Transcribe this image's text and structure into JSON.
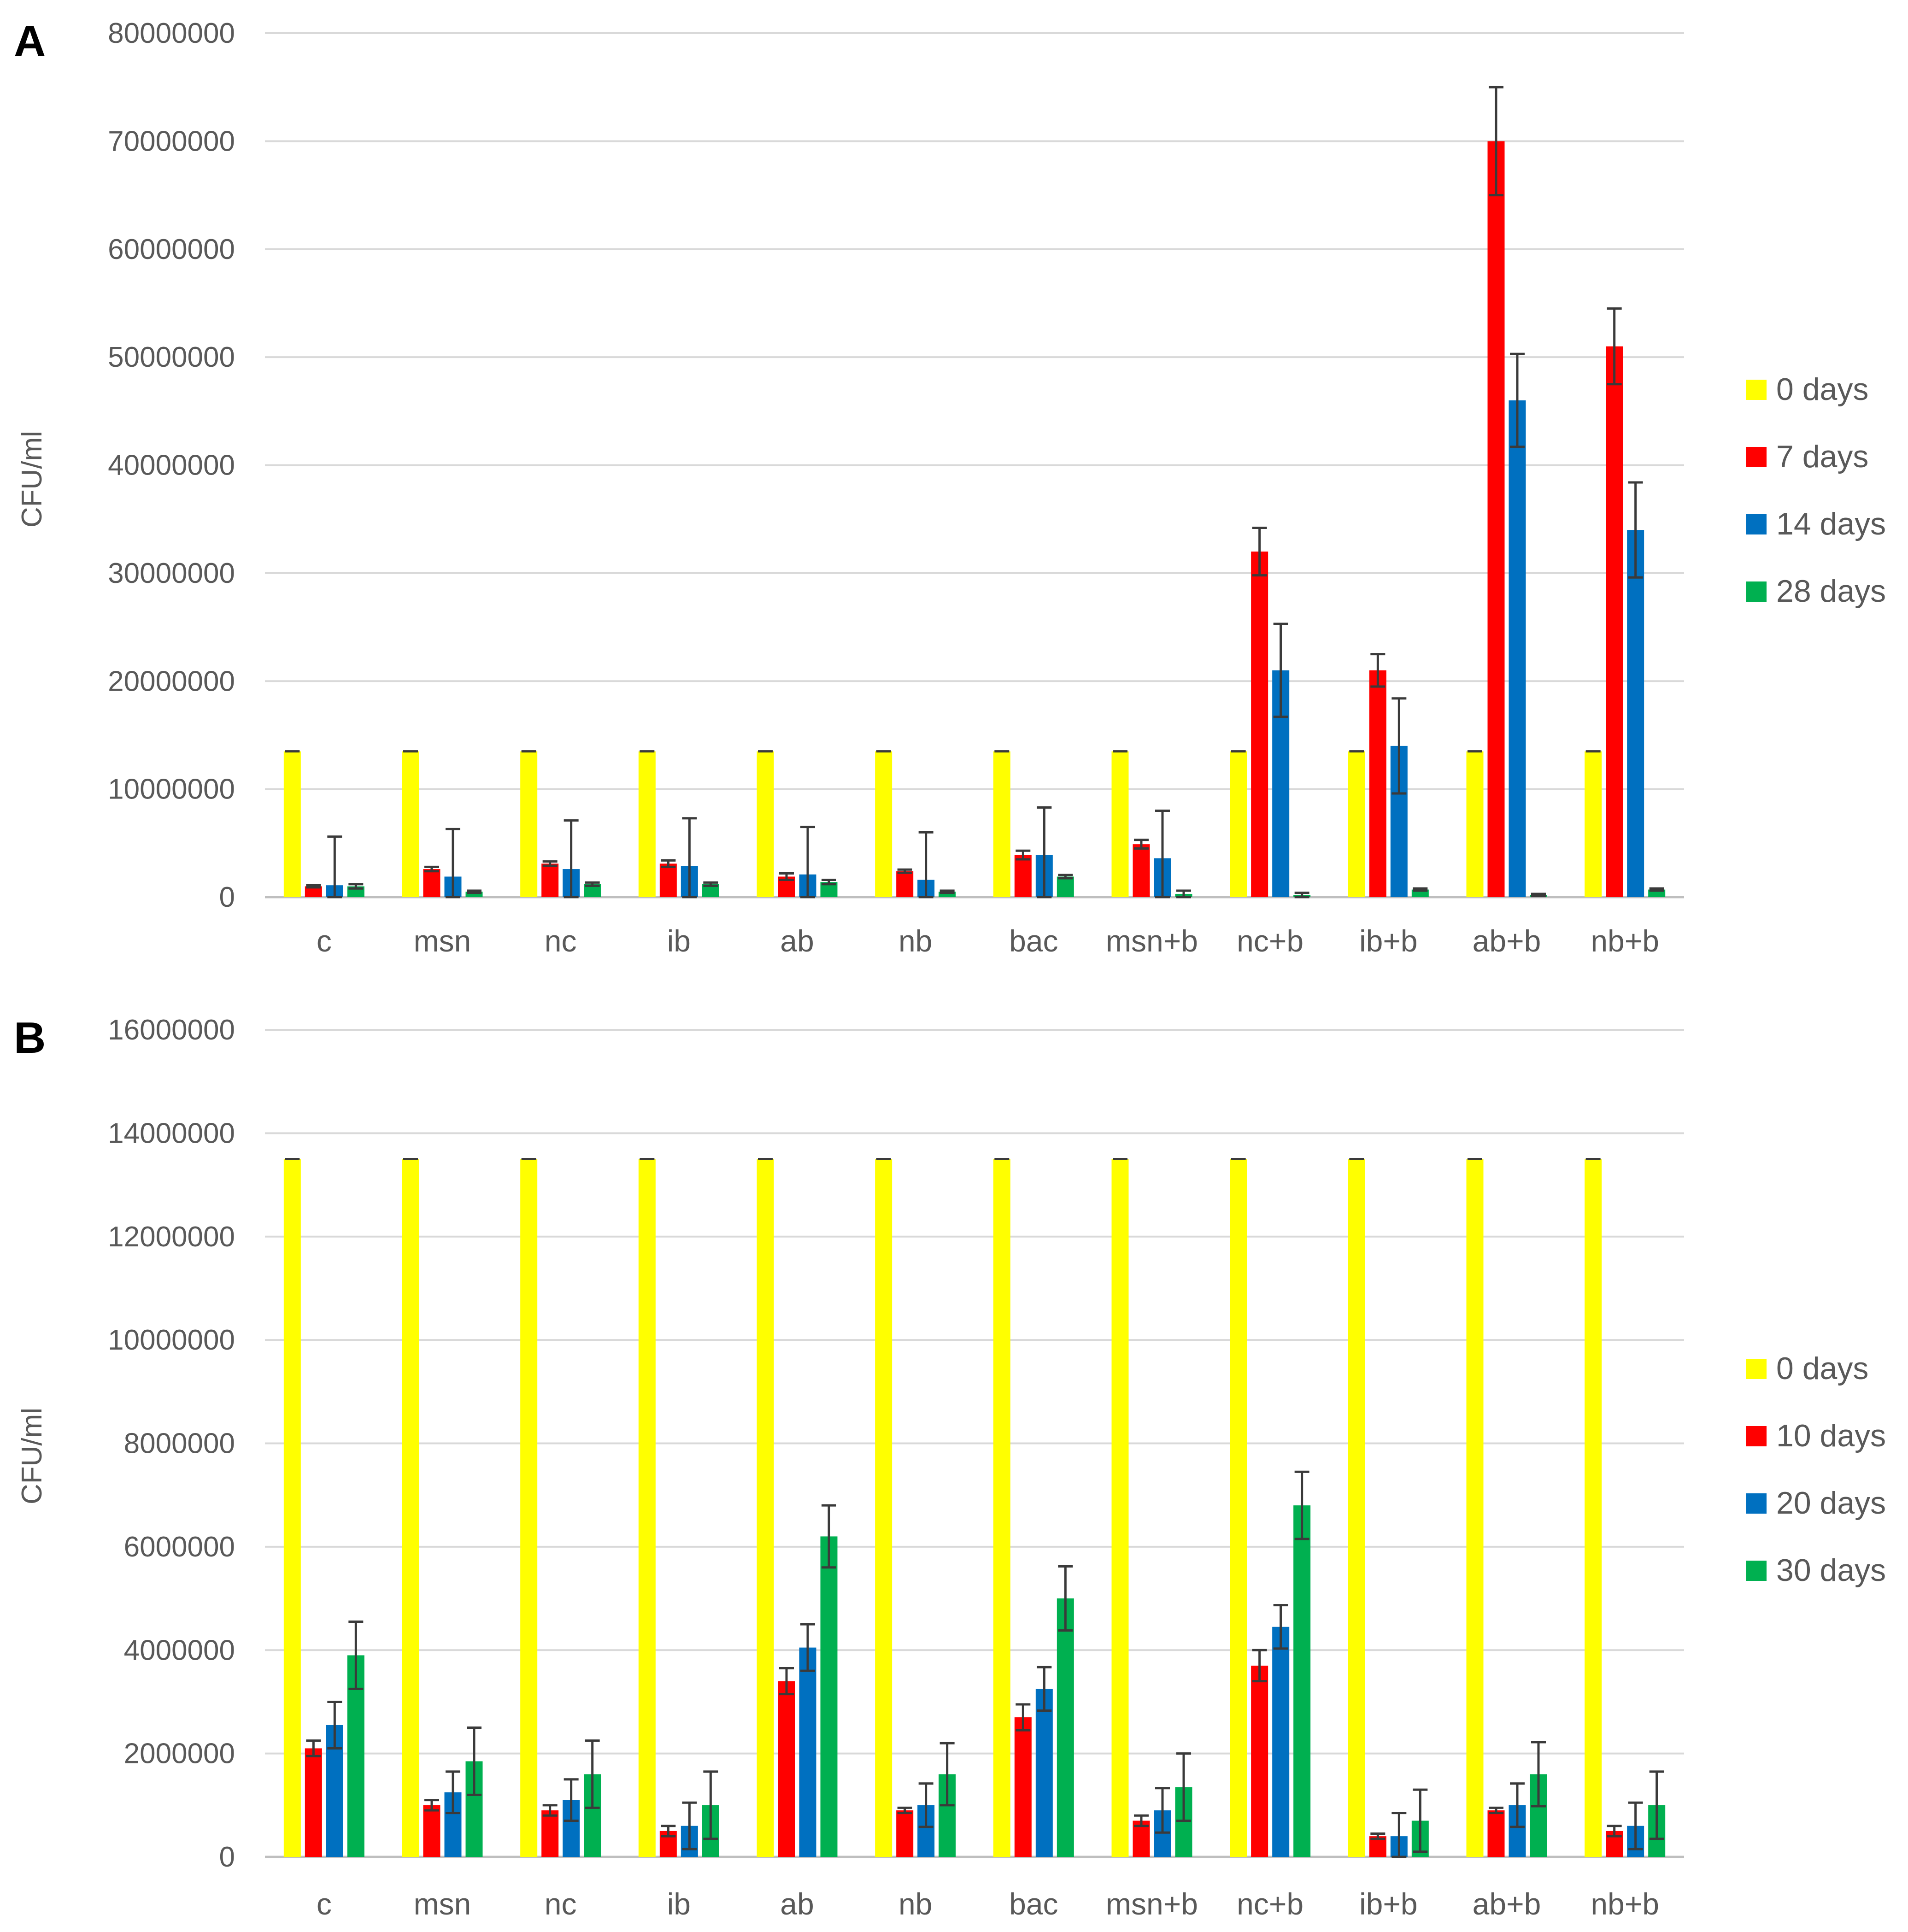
{
  "colors": {
    "yellow": "#ffff00",
    "red": "#ff0000",
    "blue": "#0070c0",
    "green": "#00b050",
    "text": "#595959",
    "grid": "#d9d9d9"
  },
  "chart_data": [
    {
      "panel": "A",
      "type": "bar",
      "ylabel": "CFU/ml",
      "ylim": [
        0,
        80000000
      ],
      "yticks": [
        "0",
        "10000000",
        "20000000",
        "30000000",
        "40000000",
        "50000000",
        "60000000",
        "70000000",
        "80000000"
      ],
      "categories": [
        "c",
        "msn",
        "nc",
        "ib",
        "ab",
        "nb",
        "bac",
        "msn+b",
        "nc+b",
        "ib+b",
        "ab+b",
        "nb+b"
      ],
      "legend_position": "right",
      "series": [
        {
          "name": "0 days",
          "color": "#ffff00",
          "values": [
            13500000,
            13500000,
            13500000,
            13500000,
            13500000,
            13500000,
            13500000,
            13500000,
            13500000,
            13500000,
            13500000,
            13500000
          ],
          "errors": [
            0,
            0,
            0,
            0,
            0,
            0,
            0,
            0,
            0,
            0,
            0,
            0
          ]
        },
        {
          "name": "7 days",
          "color": "#ff0000",
          "values": [
            1000000,
            2600000,
            3100000,
            3100000,
            1900000,
            2400000,
            3900000,
            4900000,
            32000000,
            21000000,
            70000000,
            51000000
          ],
          "errors": [
            100000,
            200000,
            200000,
            300000,
            300000,
            150000,
            400000,
            400000,
            2200000,
            1500000,
            5000000,
            3500000
          ]
        },
        {
          "name": "14 days",
          "color": "#0070c0",
          "values": [
            1100000,
            1900000,
            2600000,
            2900000,
            2100000,
            1600000,
            3900000,
            3600000,
            21000000,
            14000000,
            46000000,
            34000000
          ],
          "errors": [
            4500000,
            4400000,
            4500000,
            4400000,
            4400000,
            4400000,
            4400000,
            4400000,
            4300000,
            4400000,
            4300000,
            4400000
          ]
        },
        {
          "name": "28 days",
          "color": "#00b050",
          "values": [
            1000000,
            500000,
            1200000,
            1200000,
            1400000,
            500000,
            1900000,
            300000,
            200000,
            700000,
            200000,
            700000
          ],
          "errors": [
            200000,
            100000,
            150000,
            150000,
            200000,
            100000,
            150000,
            300000,
            200000,
            100000,
            100000,
            100000
          ]
        }
      ]
    },
    {
      "panel": "B",
      "type": "bar",
      "ylabel": "CFU/ml",
      "ylim": [
        0,
        16000000
      ],
      "yticks": [
        "0",
        "2000000",
        "4000000",
        "6000000",
        "8000000",
        "10000000",
        "12000000",
        "14000000",
        "16000000"
      ],
      "categories": [
        "c",
        "msn",
        "nc",
        "ib",
        "ab",
        "nb",
        "bac",
        "msn+b",
        "nc+b",
        "ib+b",
        "ab+b",
        "nb+b"
      ],
      "legend_position": "right",
      "series": [
        {
          "name": "0 days",
          "color": "#ffff00",
          "values": [
            13500000,
            13500000,
            13500000,
            13500000,
            13500000,
            13500000,
            13500000,
            13500000,
            13500000,
            13500000,
            13500000,
            13500000
          ],
          "errors": [
            0,
            0,
            0,
            0,
            0,
            0,
            0,
            0,
            0,
            0,
            0,
            0
          ]
        },
        {
          "name": "10 days",
          "color": "#ff0000",
          "values": [
            2100000,
            1000000,
            900000,
            500000,
            3400000,
            900000,
            2700000,
            700000,
            3700000,
            400000,
            900000,
            500000
          ],
          "errors": [
            150000,
            100000,
            100000,
            100000,
            250000,
            50000,
            250000,
            100000,
            300000,
            50000,
            50000,
            100000
          ]
        },
        {
          "name": "20 days",
          "color": "#0070c0",
          "values": [
            2550000,
            1250000,
            1100000,
            600000,
            4050000,
            1000000,
            3250000,
            900000,
            4450000,
            400000,
            1000000,
            600000
          ],
          "errors": [
            450000,
            400000,
            400000,
            450000,
            450000,
            420000,
            420000,
            430000,
            420000,
            450000,
            420000,
            450000
          ]
        },
        {
          "name": "30 days",
          "color": "#00b050",
          "values": [
            3900000,
            1850000,
            1600000,
            1000000,
            6200000,
            1600000,
            5000000,
            1350000,
            6800000,
            700000,
            1600000,
            1000000
          ],
          "errors": [
            650000,
            650000,
            650000,
            650000,
            600000,
            600000,
            620000,
            650000,
            650000,
            600000,
            620000,
            650000
          ]
        }
      ]
    }
  ]
}
